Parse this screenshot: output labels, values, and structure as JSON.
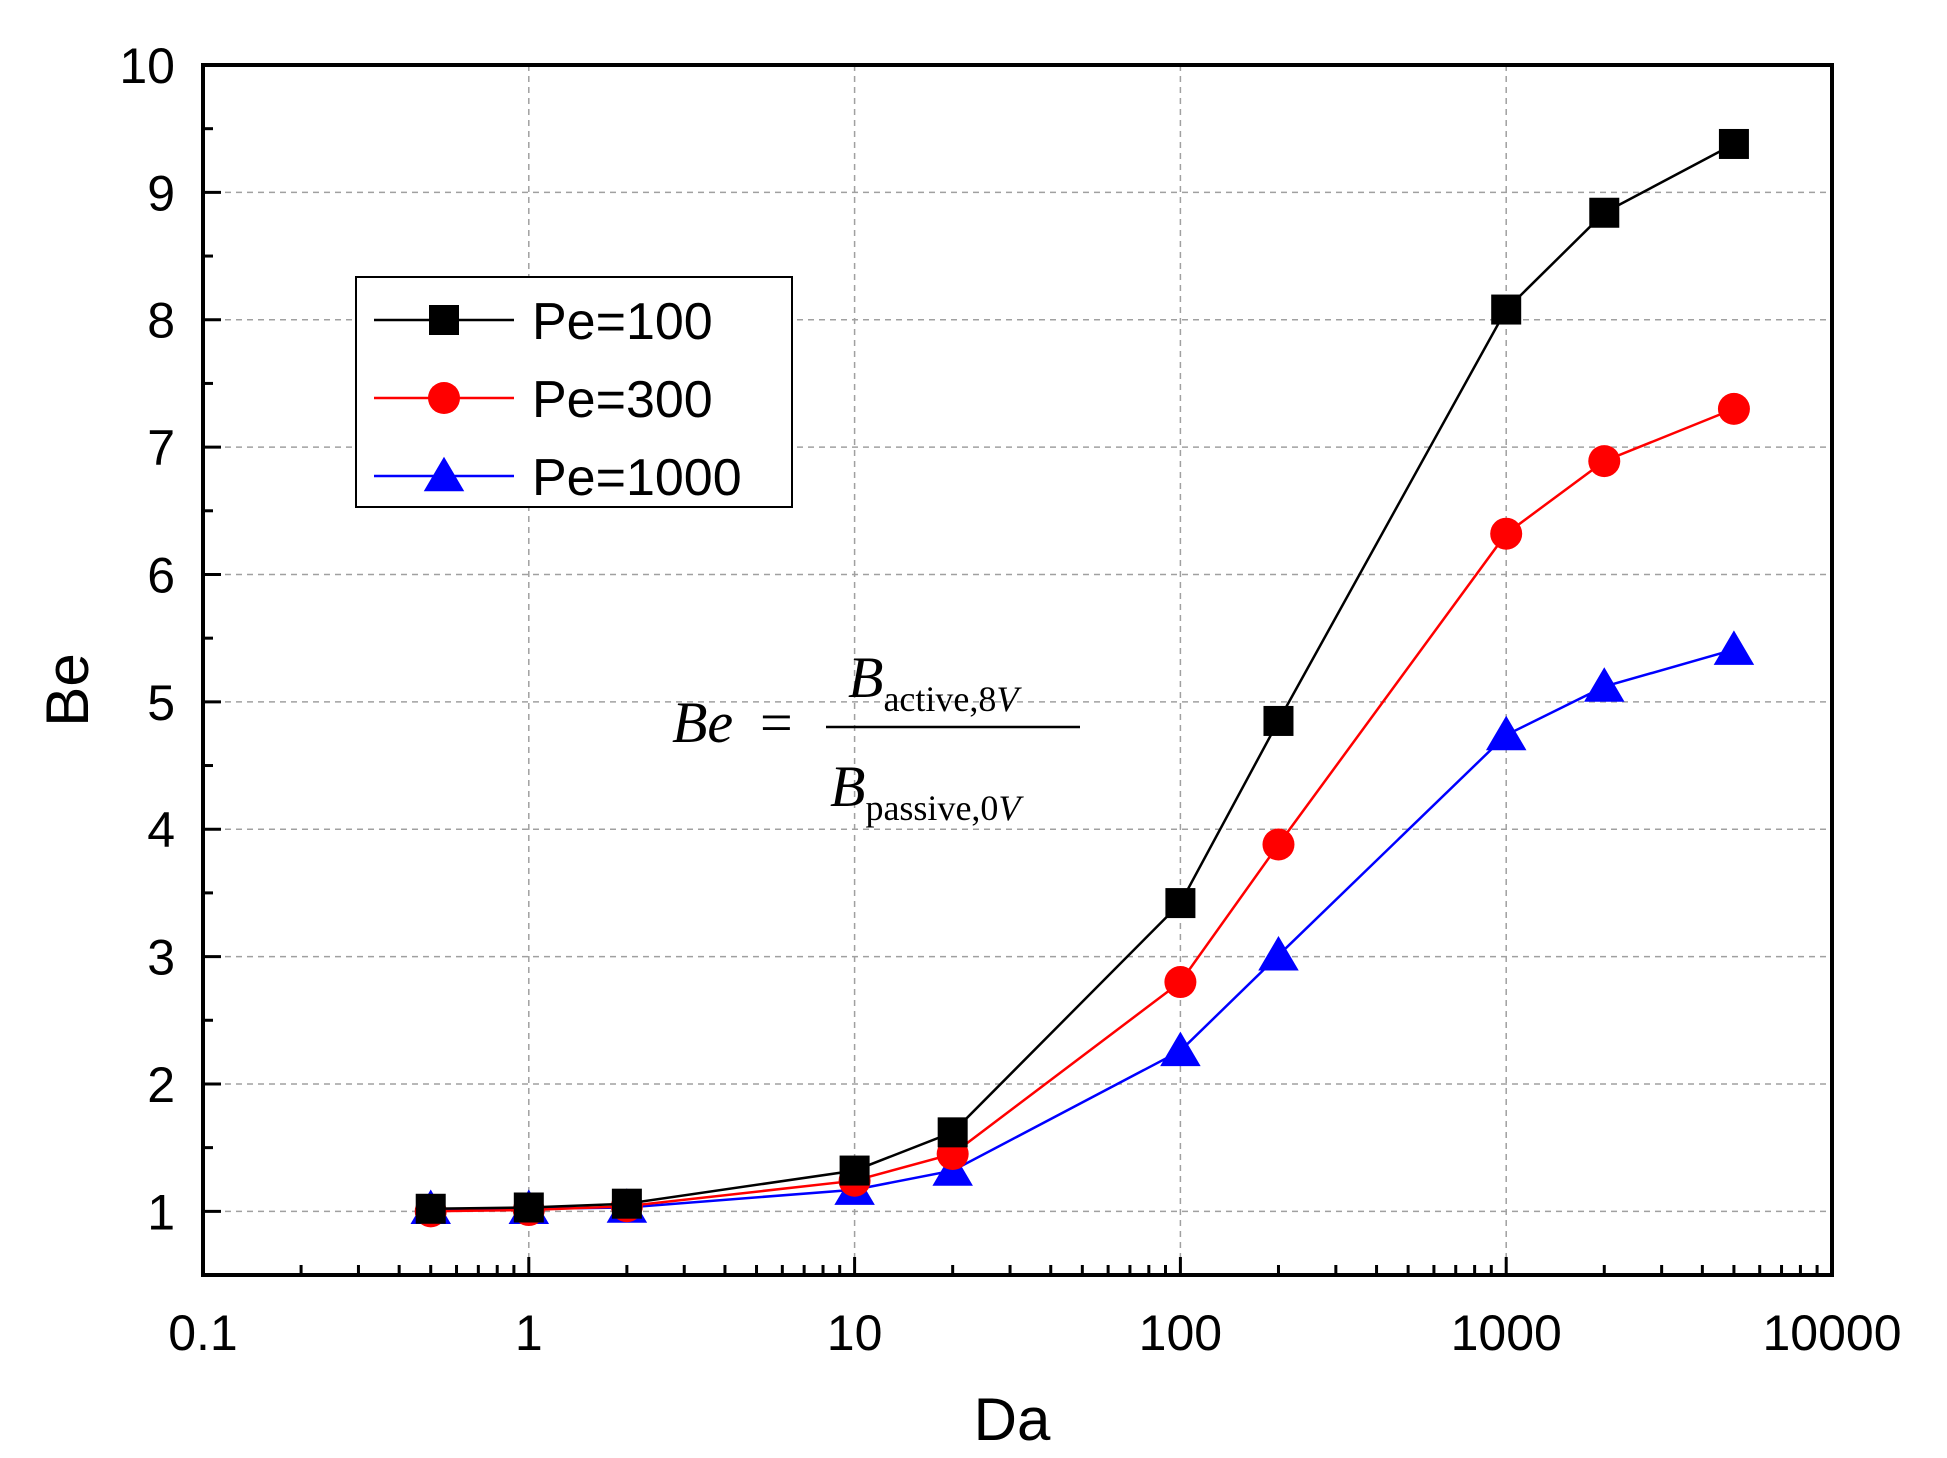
{
  "chart_data": {
    "type": "line",
    "xscale": "log",
    "xlabel": "Da",
    "ylabel": "Be",
    "xlim": [
      0.1,
      10000
    ],
    "ylim": [
      0.5,
      10
    ],
    "x_ticks": [
      0.1,
      1,
      10,
      100,
      1000,
      10000
    ],
    "x_tick_labels": [
      "0.1",
      "1",
      "10",
      "100",
      "1000",
      "10000"
    ],
    "y_ticks": [
      1,
      2,
      3,
      4,
      5,
      6,
      7,
      8,
      9,
      10
    ],
    "y_tick_labels": [
      "1",
      "2",
      "3",
      "4",
      "5",
      "6",
      "7",
      "8",
      "9",
      "10"
    ],
    "grid": true,
    "legend_position": "upper-left",
    "x": [
      0.5,
      1,
      2,
      10,
      20,
      100,
      200,
      1000,
      2000,
      5000
    ],
    "series": [
      {
        "name": "Pe=100",
        "color": "#000000",
        "marker": "square",
        "values": [
          1.02,
          1.03,
          1.06,
          1.32,
          1.62,
          3.42,
          4.85,
          8.08,
          8.84,
          9.38
        ]
      },
      {
        "name": "Pe=300",
        "color": "#ff0000",
        "marker": "circle",
        "values": [
          1.0,
          1.01,
          1.04,
          1.24,
          1.45,
          2.8,
          3.88,
          6.32,
          6.89,
          7.3
        ]
      },
      {
        "name": "Pe=1000",
        "color": "#0000ff",
        "marker": "triangle",
        "values": [
          1.02,
          1.02,
          1.03,
          1.17,
          1.32,
          2.26,
          3.01,
          4.74,
          5.12,
          5.41
        ]
      }
    ],
    "annotation": {
      "lhs": "Be",
      "equals": "=",
      "numerator_symbol": "B",
      "numerator_subscript": "active,8",
      "numerator_subscript_var": "V",
      "denominator_symbol": "B",
      "denominator_subscript": "passive,0",
      "denominator_subscript_var": "V"
    }
  }
}
